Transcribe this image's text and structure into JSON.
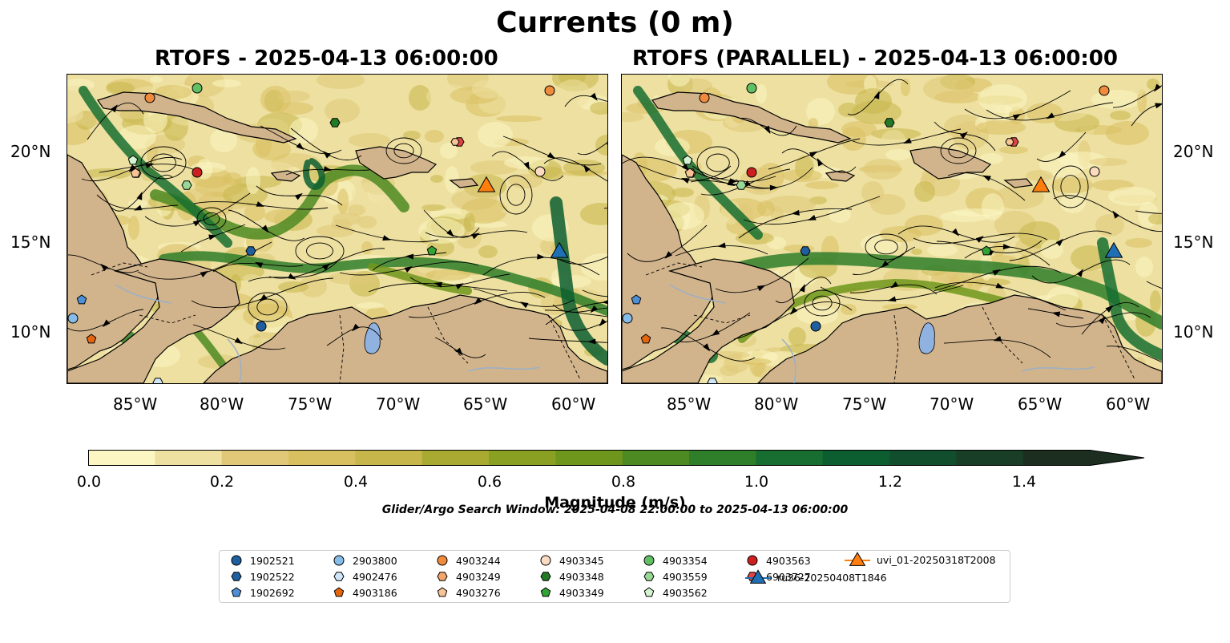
{
  "figure": {
    "title": "Currents (0 m)",
    "panels": [
      {
        "title": "RTOFS - 2025-04-13 06:00:00"
      },
      {
        "title": "RTOFS (PARALLEL) - 2025-04-13 06:00:00"
      }
    ],
    "lon_ticks": [
      "85°W",
      "80°W",
      "75°W",
      "70°W",
      "65°W",
      "60°W"
    ],
    "lat_ticks": [
      "20°N",
      "15°N",
      "10°N"
    ],
    "colorbar": {
      "label": "Magnitude (m/s)",
      "ticks": [
        "0.0",
        "0.2",
        "0.4",
        "0.6",
        "0.8",
        "1.0",
        "1.2",
        "1.4"
      ],
      "min": 0.0,
      "max": 1.5,
      "extend": "max",
      "colors": [
        "#fbf6c2",
        "#ede0a0",
        "#e0c878",
        "#d8c060",
        "#c7b64a",
        "#a8aa32",
        "#8aa022",
        "#6f961c",
        "#4e8a22",
        "#2f7e2a",
        "#186e30",
        "#0c5e30",
        "#114e2e",
        "#183e28",
        "#1c2e20"
      ]
    },
    "search_window": "Glider/Argo Search Window: 2025-04-08 22:00:00 to 2025-04-13 06:00:00",
    "legend": [
      {
        "label": "1902521",
        "marker": "circle",
        "color": "#1f5fa0"
      },
      {
        "label": "1902522",
        "marker": "hexagon",
        "color": "#1f5fa0"
      },
      {
        "label": "1902692",
        "marker": "pentagon",
        "color": "#4e90d6"
      },
      {
        "label": "2903800",
        "marker": "circle",
        "color": "#85bce8"
      },
      {
        "label": "4902476",
        "marker": "hexagon",
        "color": "#cfe6f8"
      },
      {
        "label": "4903186",
        "marker": "pentagon",
        "color": "#e6660e"
      },
      {
        "label": "4903244",
        "marker": "circle",
        "color": "#f08a3c"
      },
      {
        "label": "4903249",
        "marker": "hexagon",
        "color": "#f5a56c"
      },
      {
        "label": "4903276",
        "marker": "pentagon",
        "color": "#f8c496"
      },
      {
        "label": "4903345",
        "marker": "circle",
        "color": "#fcdcc0"
      },
      {
        "label": "4903348",
        "marker": "hexagon",
        "color": "#237a25"
      },
      {
        "label": "4903349",
        "marker": "pentagon",
        "color": "#33a335"
      },
      {
        "label": "4903354",
        "marker": "circle",
        "color": "#60c063"
      },
      {
        "label": "4903559",
        "marker": "hexagon",
        "color": "#98d896"
      },
      {
        "label": "4903562",
        "marker": "pentagon",
        "color": "#d4f4d0"
      },
      {
        "label": "4903563",
        "marker": "circle",
        "color": "#cc1f1f"
      },
      {
        "label": "6903727",
        "marker": "hexagon",
        "color": "#e04444"
      },
      {
        "label": "ru36-20250408T1846",
        "marker": "triangle",
        "color": "#1f6fb4"
      },
      {
        "label": "uvi_01-20250318T2008",
        "marker": "triangle",
        "color": "#ff7f0e"
      }
    ],
    "map_colors": {
      "land": "#d2b48c",
      "lake": "#8fb2e0",
      "river": "#9ab0c8"
    }
  }
}
